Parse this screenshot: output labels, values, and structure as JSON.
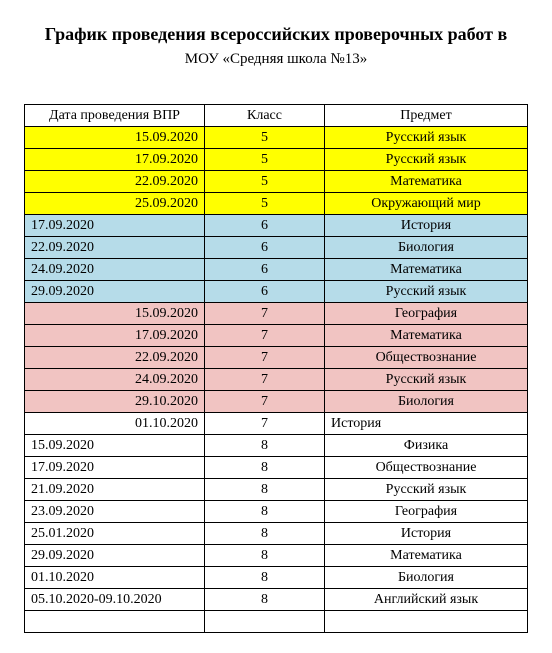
{
  "title": "График проведения всероссийских проверочных работ в",
  "subtitle": "МОУ «Средняя школа №13»",
  "columns": {
    "date": "Дата проведения ВПР",
    "klass": "Класс",
    "subject": "Предмет"
  },
  "colors": {
    "yellow": "#ffff00",
    "blue": "#b6dce9",
    "pink": "#f1c4c2",
    "white": "#ffffff"
  },
  "rows": [
    {
      "date": "15.09.2020",
      "klass": "5",
      "subject": "Русский язык",
      "bg": "yellow",
      "date_align": "right",
      "subject_align": "center"
    },
    {
      "date": "17.09.2020",
      "klass": "5",
      "subject": "Русский язык",
      "bg": "yellow",
      "date_align": "right",
      "subject_align": "center"
    },
    {
      "date": "22.09.2020",
      "klass": "5",
      "subject": "Математика",
      "bg": "yellow",
      "date_align": "right",
      "subject_align": "center"
    },
    {
      "date": "25.09.2020",
      "klass": "5",
      "subject": "Окружающий мир",
      "bg": "yellow",
      "date_align": "right",
      "subject_align": "center"
    },
    {
      "date": "17.09.2020",
      "klass": "6",
      "subject": "История",
      "bg": "blue",
      "date_align": "left",
      "subject_align": "center"
    },
    {
      "date": "22.09.2020",
      "klass": "6",
      "subject": "Биология",
      "bg": "blue",
      "date_align": "left",
      "subject_align": "center"
    },
    {
      "date": "24.09.2020",
      "klass": "6",
      "subject": "Математика",
      "bg": "blue",
      "date_align": "left",
      "subject_align": "center"
    },
    {
      "date": "29.09.2020",
      "klass": "6",
      "subject": "Русский язык",
      "bg": "blue",
      "date_align": "left",
      "subject_align": "center"
    },
    {
      "date": "15.09.2020",
      "klass": "7",
      "subject": "География",
      "bg": "pink",
      "date_align": "right",
      "subject_align": "center"
    },
    {
      "date": "17.09.2020",
      "klass": "7",
      "subject": "Математика",
      "bg": "pink",
      "date_align": "right",
      "subject_align": "center"
    },
    {
      "date": "22.09.2020",
      "klass": "7",
      "subject": "Обществознание",
      "bg": "pink",
      "date_align": "right",
      "subject_align": "center"
    },
    {
      "date": "24.09.2020",
      "klass": "7",
      "subject": "Русский язык",
      "bg": "pink",
      "date_align": "right",
      "subject_align": "center"
    },
    {
      "date": "29.10.2020",
      "klass": "7",
      "subject": "Биология",
      "bg": "pink",
      "date_align": "right",
      "subject_align": "center"
    },
    {
      "date": "01.10.2020",
      "klass": "7",
      "subject": "История",
      "bg": "white",
      "date_align": "right",
      "subject_align": "left"
    },
    {
      "date": "15.09.2020",
      "klass": "8",
      "subject": "Физика",
      "bg": "white",
      "date_align": "left",
      "subject_align": "center"
    },
    {
      "date": "17.09.2020",
      "klass": "8",
      "subject": "Обществознание",
      "bg": "white",
      "date_align": "left",
      "subject_align": "center"
    },
    {
      "date": "21.09.2020",
      "klass": "8",
      "subject": "Русский язык",
      "bg": "white",
      "date_align": "left",
      "subject_align": "center"
    },
    {
      "date": "23.09.2020",
      "klass": "8",
      "subject": "География",
      "bg": "white",
      "date_align": "left",
      "subject_align": "center"
    },
    {
      "date": "25.01.2020",
      "klass": "8",
      "subject": "История",
      "bg": "white",
      "date_align": "left",
      "subject_align": "center"
    },
    {
      "date": "29.09.2020",
      "klass": "8",
      "subject": "Математика",
      "bg": "white",
      "date_align": "left",
      "subject_align": "center"
    },
    {
      "date": "01.10.2020",
      "klass": "8",
      "subject": "Биология",
      "bg": "white",
      "date_align": "left",
      "subject_align": "center"
    },
    {
      "date": "05.10.2020-09.10.2020",
      "klass": "8",
      "subject": "Английский язык",
      "bg": "white",
      "date_align": "left",
      "subject_align": "center"
    },
    {
      "date": "",
      "klass": "",
      "subject": "",
      "bg": "white",
      "date_align": "left",
      "subject_align": "left"
    }
  ]
}
